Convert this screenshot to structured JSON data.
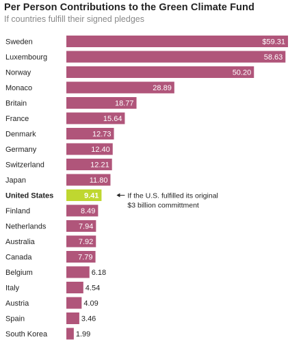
{
  "chart_data": {
    "type": "bar",
    "orientation": "horizontal",
    "title": "Per Person Contributions to the Green Climate Fund",
    "subtitle": "If countries fulfill their signed pledges",
    "value_prefix": "$",
    "categories": [
      "Sweden",
      "Luxembourg",
      "Norway",
      "Monaco",
      "Britain",
      "France",
      "Denmark",
      "Germany",
      "Switzerland",
      "Japan",
      "United States",
      "Finland",
      "Netherlands",
      "Australia",
      "Canada",
      "Belgium",
      "Italy",
      "Austria",
      "Spain",
      "South Korea"
    ],
    "values": [
      59.31,
      58.63,
      50.2,
      28.89,
      18.77,
      15.64,
      12.73,
      12.4,
      12.21,
      11.8,
      9.41,
      8.49,
      7.94,
      7.92,
      7.79,
      6.18,
      4.54,
      4.09,
      3.46,
      1.99
    ],
    "value_labels": [
      "$59.31",
      "58.63",
      "50.20",
      "28.89",
      "18.77",
      "15.64",
      "12.73",
      "12.40",
      "12.21",
      "11.80",
      "9.41",
      "8.49",
      "7.94",
      "7.92",
      "7.79",
      "6.18",
      "4.54",
      "4.09",
      "3.46",
      "1.99"
    ],
    "highlight": "United States",
    "colors": {
      "bar": "#b0557a",
      "highlight_bar": "#bfd730",
      "label_text": "#222222"
    },
    "annotation": {
      "target": "United States",
      "lines": [
        "If the U.S. fulfilled its original",
        "$3 billion committment"
      ]
    }
  }
}
